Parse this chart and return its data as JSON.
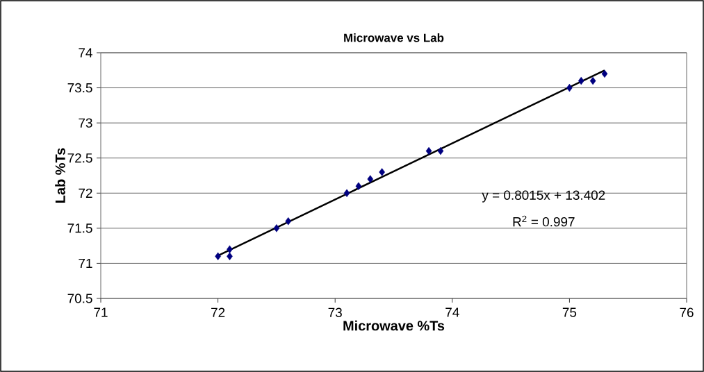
{
  "chart_data": {
    "type": "scatter",
    "title": "Microwave vs Lab",
    "xlabel": "Microwave %Ts",
    "ylabel": "Lab %Ts",
    "xlim": [
      71,
      76
    ],
    "xticks": [
      71,
      72,
      73,
      74,
      75,
      76
    ],
    "ylim": [
      70.5,
      74
    ],
    "yticks": [
      70.5,
      71,
      71.5,
      72,
      72.5,
      73,
      73.5,
      74
    ],
    "grid": "y",
    "legend": false,
    "series": [
      {
        "marker": "diamond",
        "color": "#000080",
        "x": [
          72.0,
          72.1,
          72.1,
          72.5,
          72.6,
          73.1,
          73.2,
          73.3,
          73.4,
          73.8,
          73.9,
          75.0,
          75.1,
          75.2,
          75.3
        ],
        "values": [
          71.1,
          71.2,
          71.1,
          71.5,
          71.6,
          72.0,
          72.1,
          72.2,
          72.3,
          72.6,
          72.6,
          73.5,
          73.6,
          73.6,
          73.7
        ]
      },
      {
        "type": "line",
        "color": "#000000",
        "x": [
          72.0,
          75.3
        ],
        "values": [
          71.11,
          73.75
        ]
      }
    ],
    "annotations": [
      "y = 0.8015x + 13.402",
      "R$^{2}$ = 0.997"
    ]
  }
}
